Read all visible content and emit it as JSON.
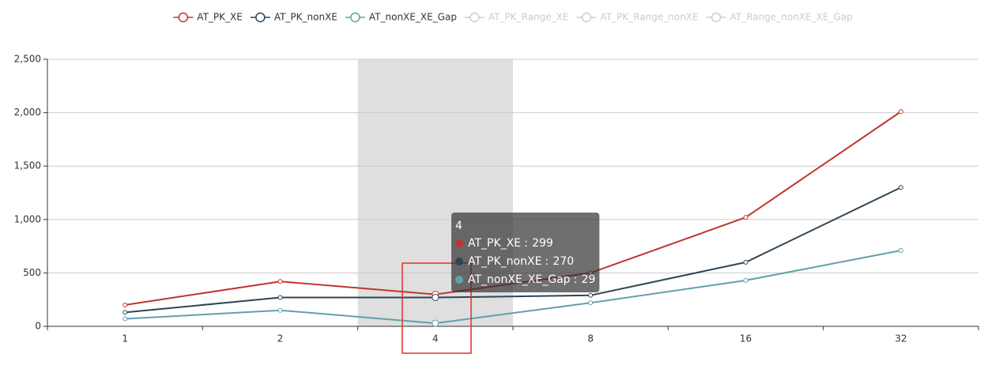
{
  "chart_data": {
    "type": "line",
    "categories": [
      "1",
      "2",
      "4",
      "8",
      "16",
      "32"
    ],
    "series": [
      {
        "name": "AT_PK_XE",
        "color": "#c23531",
        "values": [
          200,
          420,
          299,
          500,
          1020,
          2010
        ]
      },
      {
        "name": "AT_PK_nonXE",
        "color": "#2f4554",
        "values": [
          130,
          270,
          270,
          290,
          600,
          1300
        ]
      },
      {
        "name": "AT_nonXE_XE_Gap",
        "color": "#61a0a8",
        "values": [
          70,
          150,
          29,
          220,
          430,
          710
        ]
      },
      {
        "name": "AT_PK_Range_XE",
        "color": "#cccccc",
        "visible": false
      },
      {
        "name": "AT_PK_Range_nonXE",
        "color": "#cccccc",
        "visible": false
      },
      {
        "name": "AT_Range_nonXE_XE_Gap",
        "color": "#cccccc",
        "visible": false
      }
    ],
    "ylim": [
      0,
      2500
    ],
    "yticks": [
      0,
      500,
      {
        "value": 1000,
        "label": "1,000"
      },
      {
        "value": 1500,
        "label": "1,500"
      },
      {
        "value": 2000,
        "label": "2,000"
      },
      {
        "value": 2500,
        "label": "2,500"
      }
    ],
    "grid": true,
    "legend": "top",
    "tooltip_index": 2
  }
}
